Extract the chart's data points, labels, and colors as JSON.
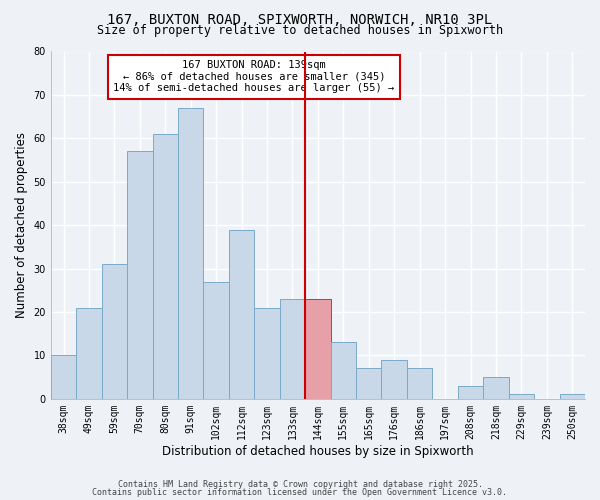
{
  "title": "167, BUXTON ROAD, SPIXWORTH, NORWICH, NR10 3PL",
  "subtitle": "Size of property relative to detached houses in Spixworth",
  "xlabel": "Distribution of detached houses by size in Spixworth",
  "ylabel": "Number of detached properties",
  "bar_labels": [
    "38sqm",
    "49sqm",
    "59sqm",
    "70sqm",
    "80sqm",
    "91sqm",
    "102sqm",
    "112sqm",
    "123sqm",
    "133sqm",
    "144sqm",
    "155sqm",
    "165sqm",
    "176sqm",
    "186sqm",
    "197sqm",
    "208sqm",
    "218sqm",
    "229sqm",
    "239sqm",
    "250sqm"
  ],
  "bar_values": [
    10,
    21,
    31,
    57,
    61,
    67,
    27,
    39,
    21,
    23,
    23,
    13,
    7,
    9,
    7,
    0,
    3,
    5,
    1,
    0,
    1
  ],
  "bar_color": "#c8d8e8",
  "bar_edge_color": "#7aaac8",
  "highlight_index": 10,
  "highlight_color": "#e8a0a8",
  "highlight_edge_color": "#cc3344",
  "vline_index": 10,
  "vline_color": "#cc0000",
  "annotation_title": "167 BUXTON ROAD: 139sqm",
  "annotation_line1": "← 86% of detached houses are smaller (345)",
  "annotation_line2": "14% of semi-detached houses are larger (55) →",
  "annotation_box_color": "#ffffff",
  "annotation_box_edge_color": "#cc0000",
  "footnote1": "Contains HM Land Registry data © Crown copyright and database right 2025.",
  "footnote2": "Contains public sector information licensed under the Open Government Licence v3.0.",
  "ylim": [
    0,
    80
  ],
  "yticks": [
    0,
    10,
    20,
    30,
    40,
    50,
    60,
    70,
    80
  ],
  "bg_color": "#eef2f7",
  "grid_color": "#ffffff",
  "title_fontsize": 10,
  "subtitle_fontsize": 8.5,
  "axis_label_fontsize": 8.5,
  "tick_fontsize": 7,
  "annotation_fontsize": 7.5,
  "footnote_fontsize": 6
}
